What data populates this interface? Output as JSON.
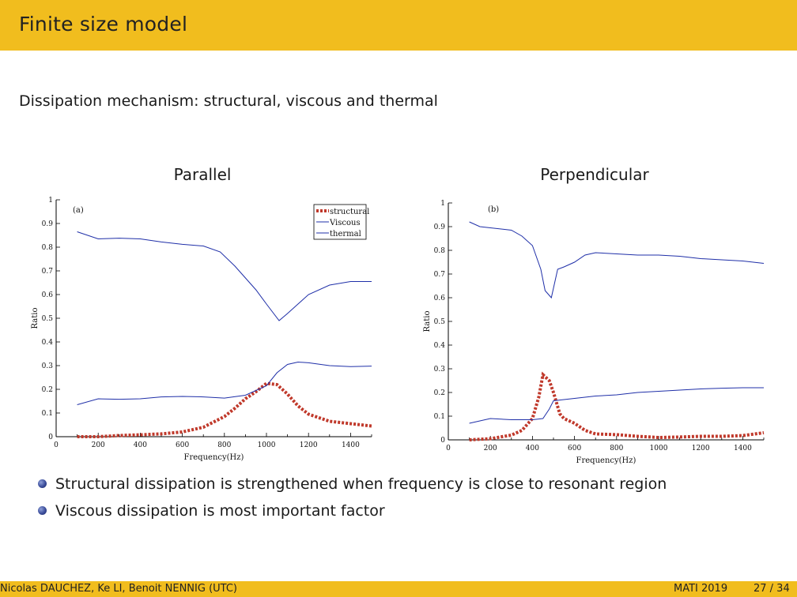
{
  "slide": {
    "title": "Finite size model",
    "subtitle": "Dissipation mechanism: structural, viscous and thermal",
    "bullets": [
      "Structural dissipation is strengthened when frequency is close to resonant region",
      "Viscous dissipation is most important factor"
    ],
    "footer": {
      "authors": "Nicolas DAUCHEZ, Ke LI, Benoit NENNIG  (UTC)",
      "venue": "MATI 2019",
      "pages": "27 / 34"
    }
  },
  "chart_data": [
    {
      "type": "line",
      "panel_title": "Parallel",
      "tag": "(a)",
      "xlabel": "Frequency(Hz)",
      "ylabel": "Ratio",
      "xlim": [
        0,
        1500
      ],
      "ylim": [
        0,
        1
      ],
      "xticks": [
        0,
        200,
        400,
        600,
        800,
        1000,
        1200,
        1400
      ],
      "yticks": [
        0,
        0.1,
        0.2,
        0.3,
        0.4,
        0.5,
        0.6,
        0.7,
        0.8,
        0.9,
        1
      ],
      "legend": {
        "placement": "top-right",
        "entries": [
          "structural",
          "Viscous",
          "thermal"
        ]
      },
      "series": [
        {
          "name": "structural",
          "color": "#c0392b",
          "style": "dotted-thick",
          "x": [
            100,
            200,
            300,
            400,
            500,
            600,
            700,
            800,
            850,
            900,
            950,
            1000,
            1050,
            1100,
            1150,
            1200,
            1300,
            1400,
            1500
          ],
          "y": [
            0.0,
            0.0,
            0.005,
            0.008,
            0.012,
            0.02,
            0.04,
            0.085,
            0.12,
            0.16,
            0.19,
            0.225,
            0.22,
            0.18,
            0.13,
            0.095,
            0.065,
            0.055,
            0.045
          ]
        },
        {
          "name": "Viscous",
          "color": "#1f2fa8",
          "style": "solid",
          "x": [
            100,
            200,
            300,
            400,
            500,
            600,
            700,
            780,
            850,
            900,
            950,
            1000,
            1060,
            1100,
            1150,
            1200,
            1300,
            1400,
            1500
          ],
          "y": [
            0.865,
            0.835,
            0.838,
            0.835,
            0.822,
            0.812,
            0.805,
            0.78,
            0.72,
            0.67,
            0.62,
            0.56,
            0.49,
            0.52,
            0.56,
            0.6,
            0.64,
            0.655,
            0.655
          ]
        },
        {
          "name": "thermal",
          "color": "#1f2fa8",
          "style": "solid",
          "x": [
            100,
            200,
            300,
            400,
            500,
            600,
            700,
            800,
            900,
            1000,
            1050,
            1100,
            1150,
            1200,
            1300,
            1400,
            1500
          ],
          "y": [
            0.135,
            0.16,
            0.158,
            0.16,
            0.168,
            0.17,
            0.168,
            0.163,
            0.175,
            0.215,
            0.27,
            0.305,
            0.315,
            0.312,
            0.3,
            0.296,
            0.298
          ]
        }
      ]
    },
    {
      "type": "line",
      "panel_title": "Perpendicular",
      "tag": "(b)",
      "xlabel": "Frequency(Hz)",
      "ylabel": "Ratio",
      "xlim": [
        0,
        1500
      ],
      "ylim": [
        0,
        1
      ],
      "xticks": [
        0,
        200,
        400,
        600,
        800,
        1000,
        1200,
        1400
      ],
      "yticks": [
        0,
        0.1,
        0.2,
        0.3,
        0.4,
        0.5,
        0.6,
        0.7,
        0.8,
        0.9,
        1
      ],
      "series": [
        {
          "name": "structural",
          "color": "#c0392b",
          "style": "dotted-thick",
          "x": [
            100,
            200,
            300,
            350,
            400,
            430,
            450,
            480,
            500,
            530,
            550,
            600,
            650,
            700,
            800,
            900,
            1000,
            1100,
            1200,
            1300,
            1400,
            1500
          ],
          "y": [
            0.0,
            0.005,
            0.02,
            0.04,
            0.09,
            0.18,
            0.275,
            0.25,
            0.2,
            0.11,
            0.09,
            0.07,
            0.04,
            0.025,
            0.022,
            0.015,
            0.01,
            0.012,
            0.015,
            0.015,
            0.018,
            0.03
          ]
        },
        {
          "name": "Viscous",
          "color": "#1f2fa8",
          "style": "solid",
          "x": [
            100,
            150,
            200,
            300,
            350,
            400,
            440,
            460,
            490,
            520,
            550,
            600,
            650,
            700,
            800,
            900,
            1000,
            1100,
            1200,
            1300,
            1400,
            1500
          ],
          "y": [
            0.92,
            0.9,
            0.895,
            0.885,
            0.86,
            0.82,
            0.72,
            0.63,
            0.6,
            0.72,
            0.73,
            0.75,
            0.78,
            0.79,
            0.785,
            0.78,
            0.78,
            0.775,
            0.765,
            0.76,
            0.755,
            0.745
          ]
        },
        {
          "name": "thermal",
          "color": "#1f2fa8",
          "style": "solid",
          "x": [
            100,
            200,
            300,
            400,
            450,
            480,
            500,
            550,
            600,
            700,
            800,
            900,
            1000,
            1100,
            1200,
            1300,
            1400,
            1500
          ],
          "y": [
            0.07,
            0.09,
            0.085,
            0.085,
            0.09,
            0.13,
            0.165,
            0.17,
            0.175,
            0.185,
            0.19,
            0.2,
            0.205,
            0.21,
            0.215,
            0.218,
            0.22,
            0.22
          ]
        }
      ]
    }
  ]
}
